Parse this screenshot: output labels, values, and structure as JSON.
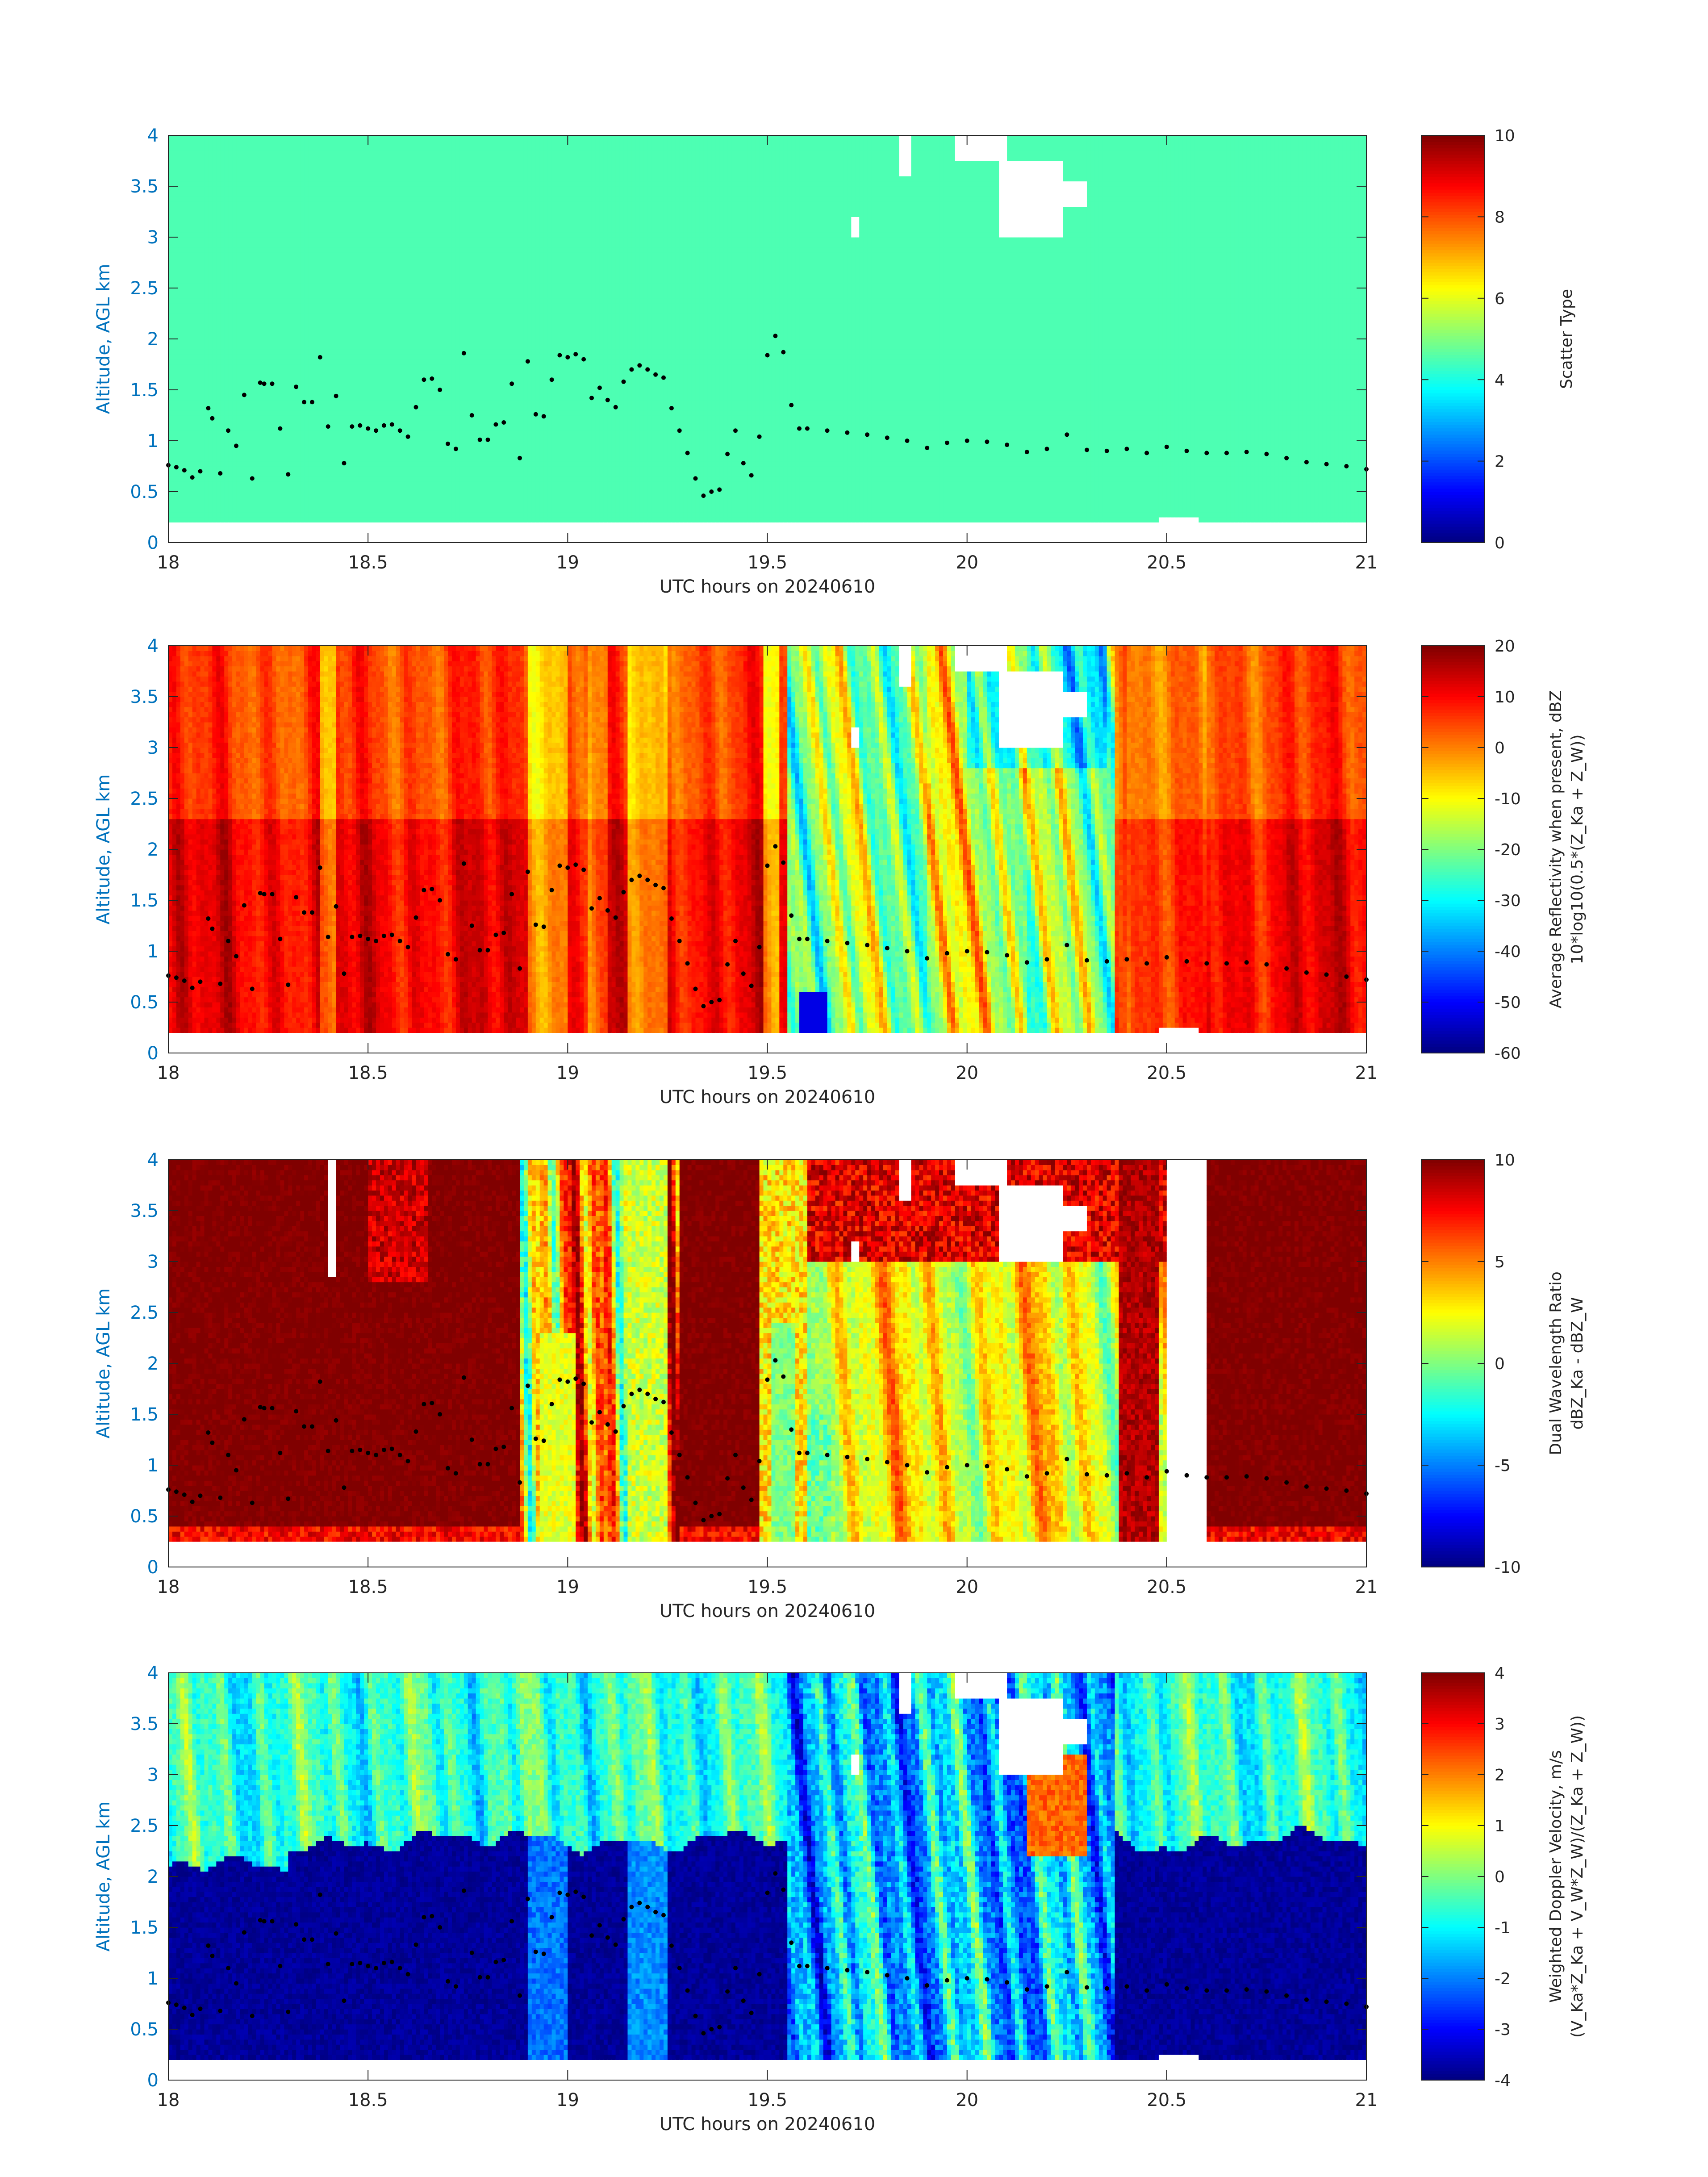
{
  "chart_data": [
    {
      "type": "heatmap",
      "xlabel": "UTC hours on 20240610",
      "ylabel": "Altitude, AGL km",
      "xlim": [
        18,
        21
      ],
      "ylim": [
        0,
        4
      ],
      "x_ticks": [
        "18",
        "18.5",
        "19",
        "19.5",
        "20",
        "20.5",
        "21"
      ],
      "y_ticks": [
        "0",
        "0.5",
        "1",
        "1.5",
        "2",
        "2.5",
        "3",
        "3.5",
        "4"
      ],
      "colorbar": {
        "label_lines": [
          "Scatter Type"
        ],
        "range": [
          0,
          10
        ],
        "ticks": [
          "0",
          "2",
          "4",
          "6",
          "8",
          "10"
        ]
      },
      "field": "scatter_type",
      "dominant_value": 4.5
    },
    {
      "type": "heatmap",
      "xlabel": "UTC hours on 20240610",
      "ylabel": "Altitude, AGL km",
      "xlim": [
        18,
        21
      ],
      "ylim": [
        0,
        4
      ],
      "x_ticks": [
        "18",
        "18.5",
        "19",
        "19.5",
        "20",
        "20.5",
        "21"
      ],
      "y_ticks": [
        "0",
        "0.5",
        "1",
        "1.5",
        "2",
        "2.5",
        "3",
        "3.5",
        "4"
      ],
      "colorbar": {
        "label_lines": [
          "Average Reflectivity when present, dBZ",
          "10*log10(0.5*(Z_Ka + Z_W))"
        ],
        "range": [
          -60,
          20
        ],
        "ticks": [
          "-60",
          "-50",
          "-40",
          "-30",
          "-20",
          "-10",
          "0",
          "10",
          "20"
        ]
      },
      "field": "reflectivity"
    },
    {
      "type": "heatmap",
      "xlabel": "UTC hours on 20240610",
      "ylabel": "Altitude, AGL km",
      "xlim": [
        18,
        21
      ],
      "ylim": [
        0,
        4
      ],
      "x_ticks": [
        "18",
        "18.5",
        "19",
        "19.5",
        "20",
        "20.5",
        "21"
      ],
      "y_ticks": [
        "0",
        "0.5",
        "1",
        "1.5",
        "2",
        "2.5",
        "3",
        "3.5",
        "4"
      ],
      "colorbar": {
        "label_lines": [
          "Dual Wavelength Ratio",
          "dBZ_Ka - dBZ_W"
        ],
        "range": [
          -10,
          10
        ],
        "ticks": [
          "-10",
          "-5",
          "0",
          "5",
          "10"
        ]
      },
      "field": "dwr"
    },
    {
      "type": "heatmap",
      "xlabel": "UTC hours on 20240610",
      "ylabel": "Altitude, AGL km",
      "xlim": [
        18,
        21
      ],
      "ylim": [
        0,
        4
      ],
      "x_ticks": [
        "18",
        "18.5",
        "19",
        "19.5",
        "20",
        "20.5",
        "21"
      ],
      "y_ticks": [
        "0",
        "0.5",
        "1",
        "1.5",
        "2",
        "2.5",
        "3",
        "3.5",
        "4"
      ],
      "colorbar": {
        "label_lines": [
          "Weighted Doppler Velocity, m/s",
          "(V_Ka*Z_Ka + V_W*Z_W)/(Z_Ka + Z_W))"
        ],
        "range": [
          -4,
          4
        ],
        "ticks": [
          "-4",
          "-3",
          "-2",
          "-1",
          "0",
          "1",
          "2",
          "3",
          "4"
        ]
      },
      "field": "velocity"
    }
  ],
  "cloud_base_km": {
    "x": [
      18.0,
      18.02,
      18.04,
      18.06,
      18.08,
      18.1,
      18.11,
      18.13,
      18.15,
      18.17,
      18.19,
      18.21,
      18.23,
      18.24,
      18.26,
      18.28,
      18.3,
      18.32,
      18.34,
      18.36,
      18.38,
      18.4,
      18.42,
      18.44,
      18.46,
      18.48,
      18.5,
      18.52,
      18.54,
      18.56,
      18.58,
      18.6,
      18.62,
      18.64,
      18.66,
      18.68,
      18.7,
      18.72,
      18.74,
      18.76,
      18.78,
      18.8,
      18.82,
      18.84,
      18.86,
      18.88,
      18.9,
      18.92,
      18.94,
      18.96,
      18.98,
      19.0,
      19.02,
      19.04,
      19.06,
      19.08,
      19.1,
      19.12,
      19.14,
      19.16,
      19.18,
      19.2,
      19.22,
      19.24,
      19.26,
      19.28,
      19.3,
      19.32,
      19.34,
      19.36,
      19.38,
      19.4,
      19.42,
      19.44,
      19.46,
      19.48,
      19.5,
      19.52,
      19.54,
      19.56,
      19.58,
      19.6,
      19.65,
      19.7,
      19.75,
      19.8,
      19.85,
      19.9,
      19.95,
      20.0,
      20.05,
      20.1,
      20.15,
      20.2,
      20.25,
      20.3,
      20.35,
      20.4,
      20.45,
      20.5,
      20.55,
      20.6,
      20.65,
      20.7,
      20.75,
      20.8,
      20.85,
      20.9,
      20.95,
      21.0
    ],
    "y": [
      0.76,
      0.74,
      0.71,
      0.64,
      0.7,
      1.32,
      1.22,
      0.68,
      1.1,
      0.95,
      1.45,
      0.63,
      1.57,
      1.56,
      1.56,
      1.12,
      0.67,
      1.53,
      1.38,
      1.38,
      1.82,
      1.14,
      1.44,
      0.78,
      1.14,
      1.15,
      1.12,
      1.1,
      1.15,
      1.16,
      1.1,
      1.04,
      1.33,
      1.6,
      1.61,
      1.5,
      0.97,
      0.92,
      1.86,
      1.25,
      1.01,
      1.01,
      1.16,
      1.18,
      1.56,
      0.83,
      1.78,
      1.26,
      1.24,
      1.6,
      1.84,
      1.82,
      1.85,
      1.8,
      1.42,
      1.52,
      1.4,
      1.33,
      1.58,
      1.7,
      1.74,
      1.7,
      1.65,
      1.62,
      1.32,
      1.1,
      0.88,
      0.63,
      0.46,
      0.5,
      0.52,
      0.87,
      1.1,
      0.78,
      0.66,
      1.04,
      1.84,
      2.03,
      1.87,
      1.35,
      1.12,
      1.12,
      1.1,
      1.08,
      1.06,
      1.03,
      1.0,
      0.93,
      0.98,
      1.0,
      0.99,
      0.96,
      0.89,
      0.92,
      1.06,
      0.91,
      0.9,
      0.92,
      0.88,
      0.94,
      0.9,
      0.88,
      0.88,
      0.89,
      0.87,
      0.83,
      0.79,
      0.77,
      0.75,
      0.72
    ]
  }
}
